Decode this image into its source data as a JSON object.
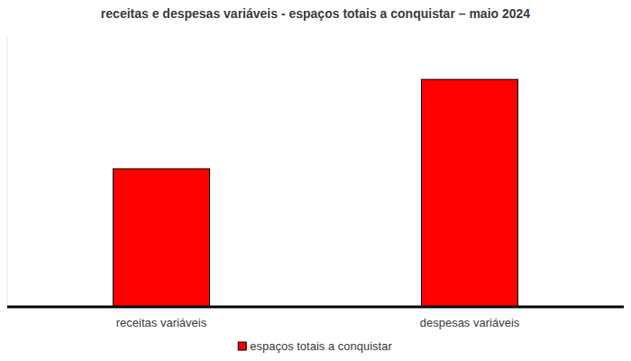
{
  "chart_data": {
    "type": "bar",
    "title": "receitas e despesas variáveis - espaços totais a conquistar – maio 2024",
    "categories": [
      "receitas variáveis",
      "despesas variáveis"
    ],
    "series": [
      {
        "name": "espaços totais a conquistar",
        "color": "#ff0000",
        "values": [
          51,
          84
        ]
      }
    ],
    "ylim": [
      0,
      100
    ],
    "tick_labels": "x",
    "grid": false,
    "legend": "bottom"
  }
}
